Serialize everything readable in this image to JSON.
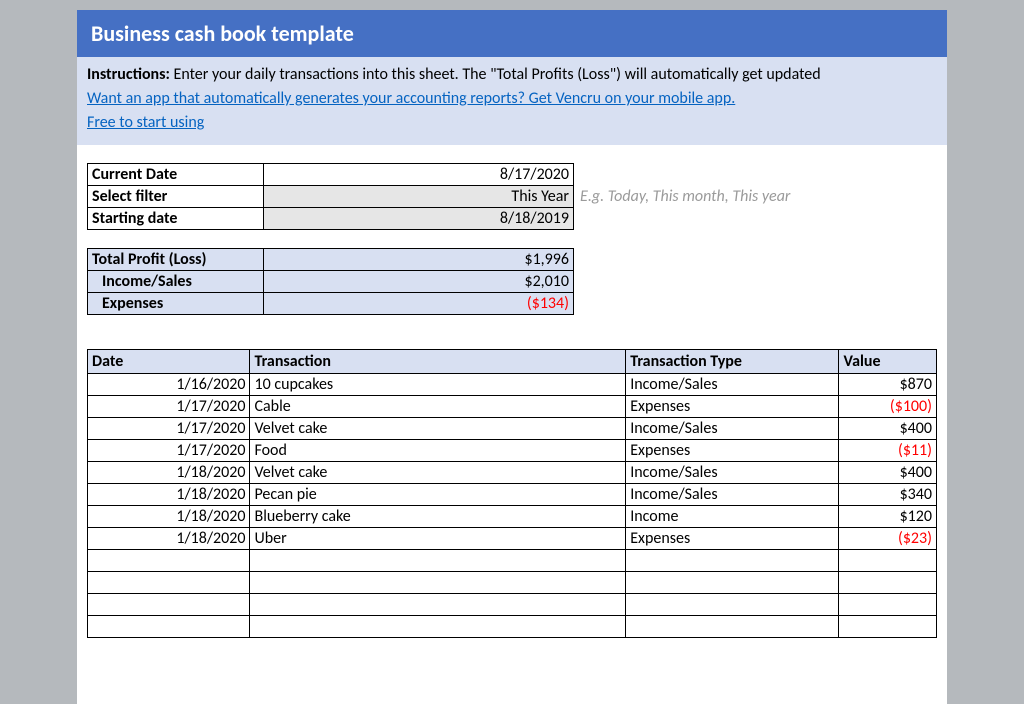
{
  "colors": {
    "page_bg": "#b5b9bd",
    "sheet_bg": "#ffffff",
    "title_bg": "#4570c4",
    "title_text": "#ffffff",
    "accent_bg": "#d8e0f2",
    "link": "#0563c1",
    "hint": "#9a9a9a",
    "negative": "#ff0000",
    "shaded": "#e6e6e6",
    "border": "#000000"
  },
  "title": "Business cash book template",
  "instructions": {
    "label": "Instructions:",
    "text": " Enter your daily transactions into this sheet. The \"Total Profits (Loss\") will automatically get updated",
    "link1": "Want an app that automatically generates your accounting reports? Get Vencru on your mobile app.",
    "link2": "Free to start using"
  },
  "meta": {
    "current_date_label": "Current Date",
    "current_date_value": "8/17/2020",
    "select_filter_label": "Select filter",
    "select_filter_value": "This Year",
    "select_filter_hint": "E.g. Today, This month, This year",
    "starting_date_label": "Starting date",
    "starting_date_value": "8/18/2019"
  },
  "summary": {
    "total_label": "Total Profit (Loss)",
    "total_value": "$1,996",
    "income_label": "Income/Sales",
    "income_value": "$2,010",
    "expenses_label": "Expenses",
    "expenses_value": "($134)"
  },
  "tx_headers": {
    "date": "Date",
    "transaction": "Transaction",
    "type": "Transaction Type",
    "value": "Value"
  },
  "tx_rows": [
    {
      "date": "1/16/2020",
      "transaction": "10 cupcakes",
      "type": "Income/Sales",
      "value": "$870",
      "neg": false
    },
    {
      "date": "1/17/2020",
      "transaction": "Cable",
      "type": "Expenses",
      "value": "($100)",
      "neg": true
    },
    {
      "date": "1/17/2020",
      "transaction": "Velvet cake",
      "type": "Income/Sales",
      "value": "$400",
      "neg": false
    },
    {
      "date": "1/17/2020",
      "transaction": "Food",
      "type": "Expenses",
      "value": "($11)",
      "neg": true
    },
    {
      "date": "1/18/2020",
      "transaction": "Velvet cake",
      "type": "Income/Sales",
      "value": "$400",
      "neg": false
    },
    {
      "date": "1/18/2020",
      "transaction": "Pecan pie",
      "type": "Income/Sales",
      "value": "$340",
      "neg": false
    },
    {
      "date": "1/18/2020",
      "transaction": "Blueberry cake",
      "type": "Income",
      "value": "$120",
      "neg": false
    },
    {
      "date": "1/18/2020",
      "transaction": "Uber",
      "type": "Expenses",
      "value": "($23)",
      "neg": true
    }
  ],
  "empty_rows": 4
}
